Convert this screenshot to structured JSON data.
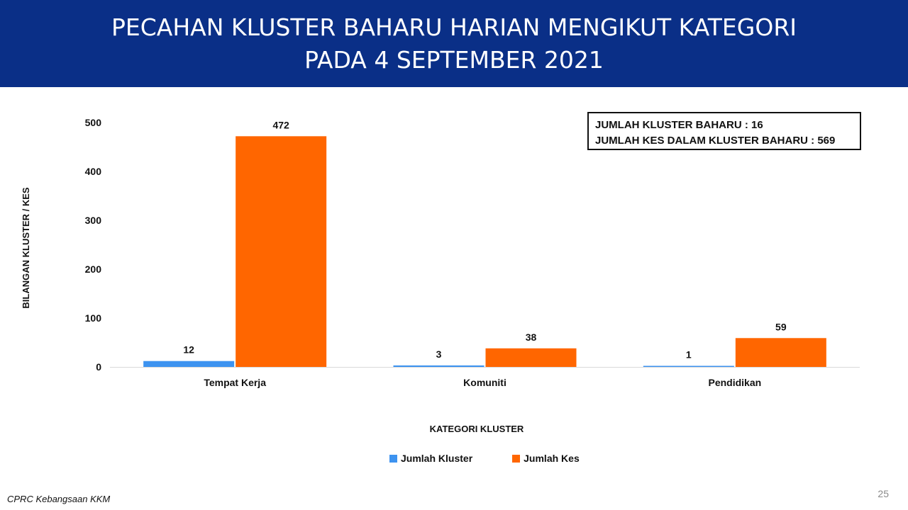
{
  "header": {
    "title_line_1": "PECAHAN KLUSTER BAHARU HARIAN MENGIKUT KATEGORI",
    "title_line_2": "PADA 4 SEPTEMBER 2021"
  },
  "summary": {
    "line_1": "JUMLAH KLUSTER BAHARU : 16",
    "line_2": "JUMLAH KES DALAM KLUSTER BAHARU : 569"
  },
  "chart_data": {
    "type": "bar",
    "title": "PECAHAN KLUSTER BAHARU HARIAN MENGIKUT KATEGORI PADA 4 SEPTEMBER 2021",
    "xlabel": "KATEGORI KLUSTER",
    "ylabel": "BILANGAN KLUSTER / KES",
    "categories": [
      "Tempat Kerja",
      "Komuniti",
      "Pendidikan"
    ],
    "series": [
      {
        "name": "Jumlah Kluster",
        "values": [
          12,
          3,
          1
        ],
        "color": "#3d93f0"
      },
      {
        "name": "Jumlah Kes",
        "values": [
          472,
          38,
          59
        ],
        "color": "#ff6600"
      }
    ],
    "ylim": [
      0,
      500
    ],
    "yticks": [
      0,
      100,
      200,
      300,
      400,
      500
    ],
    "grid": false,
    "legend": "bottom"
  },
  "footer": {
    "source": "CPRC Kebangsaan KKM",
    "page_number": "25"
  }
}
